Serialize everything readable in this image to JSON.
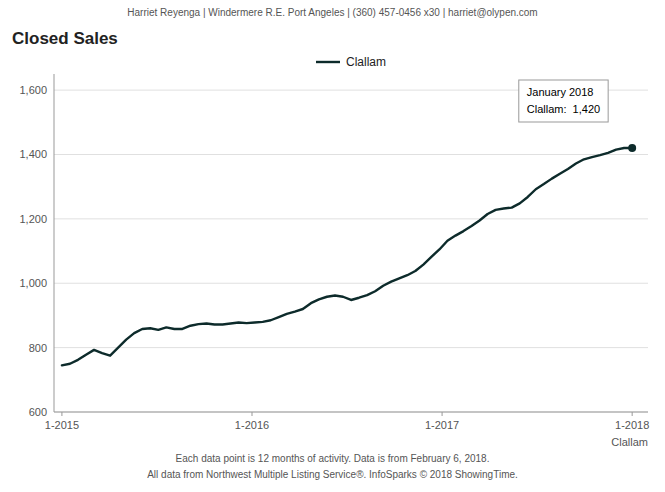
{
  "chart_data": {
    "type": "line",
    "title": "Closed Sales",
    "subtitle": "Harriet Reyenga | Windermere R.E. Port Angeles | (360) 457-0456 x30 | harriet@olypen.com",
    "footnotes": [
      "Each data point is 12 months of activity. Data is from February 6, 2018.",
      "All data from Northwest Multiple Listing Service®. InfoSparks © 2018 ShowingTime."
    ],
    "xlabel": "Clallam",
    "annotations": [
      "January 2018",
      "Clallam:  1,420"
    ],
    "x": [
      0,
      0.507,
      1.0141,
      1.5211,
      2.0282,
      2.5352,
      3.0423,
      3.5493,
      4.0563,
      4.5634,
      5.0704,
      5.5775,
      6.0845,
      6.5915,
      7.0986,
      7.6056,
      8.1127,
      8.6197,
      9.1268,
      9.6338,
      10.1408,
      10.6479,
      11.1549,
      11.662,
      12.169,
      12.6761,
      13.1831,
      13.6901,
      14.1972,
      14.7042,
      15.2113,
      15.7183,
      16.2254,
      16.7324,
      17.2394,
      17.7465,
      18.2535,
      18.7606,
      19.2676,
      19.7746,
      20.2817,
      20.7887,
      21.2958,
      21.8028,
      22.3099,
      22.8169,
      23.3239,
      23.831,
      24.338,
      24.8451,
      25.3521,
      25.8592,
      26.3662,
      26.8732,
      27.3803,
      27.8873,
      28.3944,
      28.9014,
      29.4085,
      29.9155,
      30.4225,
      30.9296,
      31.4366,
      31.9437,
      32.4507,
      32.9577,
      33.4648,
      33.9718,
      34.4789,
      34.9859,
      35.493,
      36
    ],
    "series": [
      {
        "name": "Clallam",
        "color": "#0d2b2b",
        "values": [
          745,
          750,
          762,
          778,
          793,
          783,
          775,
          800,
          825,
          845,
          858,
          860,
          855,
          863,
          858,
          858,
          868,
          873,
          875,
          872,
          872,
          875,
          878,
          876,
          878,
          880,
          885,
          895,
          905,
          912,
          920,
          938,
          950,
          958,
          962,
          958,
          948,
          955,
          963,
          975,
          992,
          1005,
          1015,
          1025,
          1038,
          1058,
          1082,
          1105,
          1132,
          1148,
          1162,
          1178,
          1195,
          1215,
          1228,
          1232,
          1235,
          1248,
          1268,
          1292,
          1308,
          1325,
          1340,
          1355,
          1372,
          1385,
          1392,
          1398,
          1405,
          1415,
          1420,
          1420
        ]
      }
    ],
    "xlim": [
      -0.5,
      37
    ],
    "xticks": [
      {
        "value": 0,
        "label": "1-2015"
      },
      {
        "value": 12,
        "label": "1-2016"
      },
      {
        "value": 24,
        "label": "1-2017"
      },
      {
        "value": 36,
        "label": "1-2018"
      }
    ],
    "ylim": [
      600,
      1650
    ],
    "yticks": [
      600,
      800,
      {
        "value": 1000,
        "label": "1,000"
      },
      {
        "value": 1200,
        "label": "1,200"
      },
      {
        "value": 1400,
        "label": "1,400"
      },
      {
        "value": 1600,
        "label": "1,600"
      }
    ],
    "grid": true,
    "legend": "top"
  }
}
